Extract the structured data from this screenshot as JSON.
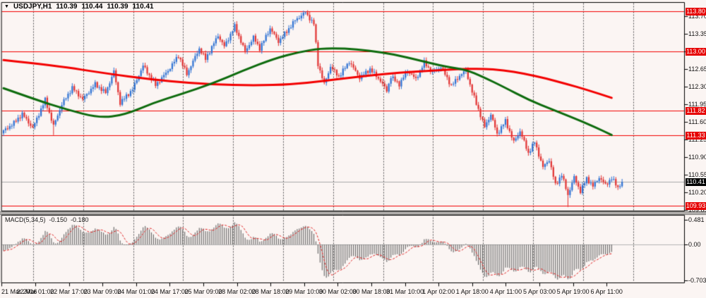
{
  "header": {
    "caret": "▼",
    "symbol_period": "USDJPY,H1",
    "open": "110.39",
    "high": "110.44",
    "low": "110.39",
    "close": "110.41"
  },
  "macd_header": {
    "label": "MACD(5,34,5)",
    "value_main": "-0.150",
    "value_signal": "-0.180"
  },
  "colors": {
    "background": "#fbf5f3",
    "frame": "#000000",
    "candle_up": "#2e72d4",
    "candle_down": "#e23333",
    "ma_fast_red": "#f30000",
    "ma_slow_green": "#0d6b0d",
    "hline": "#f30000",
    "badge_red_bg": "#e60000",
    "badge_black_bg": "#000000",
    "histogram": "#6f6f6f",
    "signal_line": "#e12222",
    "day_separator": "#555555",
    "bid_line": "#a8a8a8",
    "zero_line": "#b4b4b4",
    "panel_divider": "#b3b0ae"
  },
  "chart_data": {
    "type": "candlestick",
    "symbol": "USDJPY",
    "timeframe": "H1",
    "bars": 298,
    "indicator_bars": 293,
    "bid": 110.41,
    "ohlc_current": {
      "open": 110.39,
      "high": 110.44,
      "low": 110.39,
      "close": 110.41
    },
    "price_axis_ticks": [
      113.7,
      113.35,
      113.0,
      112.65,
      112.3,
      111.95,
      111.6,
      111.25,
      110.9,
      110.55,
      110.2,
      109.85
    ],
    "hlines": [
      113.8,
      113.0,
      111.82,
      111.33,
      109.93
    ],
    "close_path": [
      [
        0,
        111.42
      ],
      [
        5,
        111.58
      ],
      [
        9,
        111.76
      ],
      [
        14,
        111.48
      ],
      [
        20,
        112.04
      ],
      [
        24,
        111.52
      ],
      [
        28,
        111.95
      ],
      [
        33,
        112.28
      ],
      [
        38,
        112.05
      ],
      [
        44,
        112.35
      ],
      [
        49,
        112.18
      ],
      [
        53,
        112.6
      ],
      [
        56,
        111.98
      ],
      [
        62,
        112.25
      ],
      [
        67,
        112.72
      ],
      [
        73,
        112.33
      ],
      [
        79,
        112.62
      ],
      [
        84,
        112.92
      ],
      [
        88,
        112.55
      ],
      [
        94,
        113.06
      ],
      [
        97,
        112.85
      ],
      [
        103,
        113.32
      ],
      [
        106,
        113.1
      ],
      [
        111,
        113.5
      ],
      [
        116,
        113.0
      ],
      [
        120,
        113.28
      ],
      [
        123,
        113.06
      ],
      [
        128,
        113.46
      ],
      [
        132,
        113.2
      ],
      [
        136,
        113.4
      ],
      [
        140,
        113.62
      ],
      [
        145,
        113.78
      ],
      [
        148,
        113.6
      ],
      [
        149,
        113.55
      ],
      [
        151,
        112.75
      ],
      [
        154,
        112.35
      ],
      [
        157,
        112.7
      ],
      [
        161,
        112.5
      ],
      [
        166,
        112.8
      ],
      [
        171,
        112.48
      ],
      [
        176,
        112.65
      ],
      [
        181,
        112.42
      ],
      [
        184,
        112.22
      ],
      [
        186,
        112.5
      ],
      [
        190,
        112.35
      ],
      [
        194,
        112.62
      ],
      [
        198,
        112.45
      ],
      [
        202,
        112.78
      ],
      [
        206,
        112.58
      ],
      [
        210,
        112.7
      ],
      [
        215,
        112.32
      ],
      [
        219,
        112.52
      ],
      [
        222,
        112.62
      ],
      [
        225,
        112.2
      ],
      [
        228,
        111.85
      ],
      [
        231,
        111.5
      ],
      [
        234,
        111.75
      ],
      [
        237,
        111.36
      ],
      [
        241,
        111.62
      ],
      [
        245,
        111.2
      ],
      [
        248,
        111.42
      ],
      [
        252,
        110.98
      ],
      [
        255,
        111.2
      ],
      [
        259,
        110.7
      ],
      [
        262,
        110.85
      ],
      [
        265,
        110.35
      ],
      [
        268,
        110.55
      ],
      [
        271,
        110.15
      ],
      [
        274,
        110.5
      ],
      [
        277,
        110.22
      ],
      [
        280,
        110.48
      ],
      [
        283,
        110.32
      ],
      [
        286,
        110.5
      ],
      [
        289,
        110.35
      ],
      [
        292,
        110.48
      ],
      [
        295,
        110.3
      ],
      [
        297,
        110.41
      ]
    ],
    "spikes": [
      {
        "bar": 24,
        "low": 111.34
      },
      {
        "bar": 145,
        "high": 113.8
      },
      {
        "bar": 271,
        "low": 109.91
      }
    ],
    "ma_red": [
      [
        0,
        112.83
      ],
      [
        25,
        112.72
      ],
      [
        50,
        112.56
      ],
      [
        70,
        112.45
      ],
      [
        90,
        112.37
      ],
      [
        110,
        112.33
      ],
      [
        130,
        112.33
      ],
      [
        145,
        112.37
      ],
      [
        160,
        112.45
      ],
      [
        175,
        112.52
      ],
      [
        190,
        112.58
      ],
      [
        205,
        112.62
      ],
      [
        218,
        112.65
      ],
      [
        230,
        112.66
      ],
      [
        240,
        112.63
      ],
      [
        250,
        112.56
      ],
      [
        260,
        112.47
      ],
      [
        270,
        112.36
      ],
      [
        280,
        112.24
      ],
      [
        292,
        112.08
      ]
    ],
    "ma_green": [
      [
        0,
        112.27
      ],
      [
        15,
        112.05
      ],
      [
        30,
        111.85
      ],
      [
        46,
        111.68
      ],
      [
        58,
        111.74
      ],
      [
        72,
        111.98
      ],
      [
        85,
        112.15
      ],
      [
        100,
        112.36
      ],
      [
        115,
        112.62
      ],
      [
        130,
        112.86
      ],
      [
        142,
        112.99
      ],
      [
        152,
        113.06
      ],
      [
        164,
        113.06
      ],
      [
        175,
        113.02
      ],
      [
        188,
        112.94
      ],
      [
        200,
        112.82
      ],
      [
        212,
        112.7
      ],
      [
        222,
        112.64
      ],
      [
        230,
        112.5
      ],
      [
        240,
        112.3
      ],
      [
        252,
        112.04
      ],
      [
        264,
        111.84
      ],
      [
        276,
        111.64
      ],
      [
        284,
        111.5
      ],
      [
        292,
        111.34
      ]
    ],
    "macd": {
      "fast_period": 5,
      "slow_period": 34,
      "signal_period": 5,
      "current_main": -0.15,
      "current_signal": -0.18,
      "axis_ticks": [
        {
          "v": 0.481,
          "label": "0.481"
        },
        {
          "v": 0.0,
          "label": "0.00"
        },
        {
          "v": -0.703,
          "label": "-0.703"
        }
      ]
    },
    "time_ticks": [
      "21 Mar 2016",
      "22 Mar 01:00",
      "22 Mar 17:00",
      "23 Mar 09:00",
      "24 Mar 01:00",
      "24 Mar 17:00",
      "25 Mar 09:00",
      "28 Mar 02:00",
      "28 Mar 18:00",
      "29 Mar 10:00",
      "30 Mar 02:00",
      "30 Mar 18:00",
      "31 Mar 10:00",
      "1 Apr 02:00",
      "1 Apr 18:00",
      "4 Apr 11:00",
      "5 Apr 03:00",
      "5 Apr 19:00",
      "6 Apr 11:00"
    ]
  }
}
